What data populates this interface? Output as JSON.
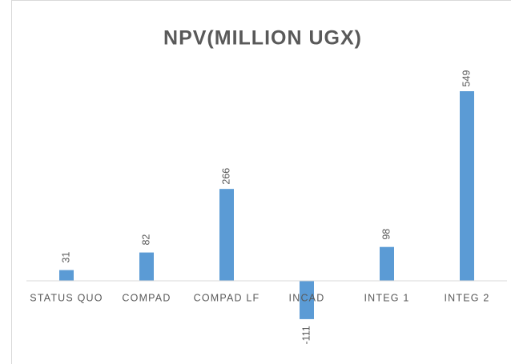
{
  "chart_data": {
    "type": "bar",
    "title": "NPV(MILLION UGX)",
    "categories": [
      "STATUS QUO",
      "COMPAD",
      "COMPAD LF",
      "INCAD",
      "INTEG 1",
      "INTEG 2"
    ],
    "values": [
      31,
      82,
      266,
      -111,
      98,
      549
    ],
    "color": "#5b9bd5"
  }
}
